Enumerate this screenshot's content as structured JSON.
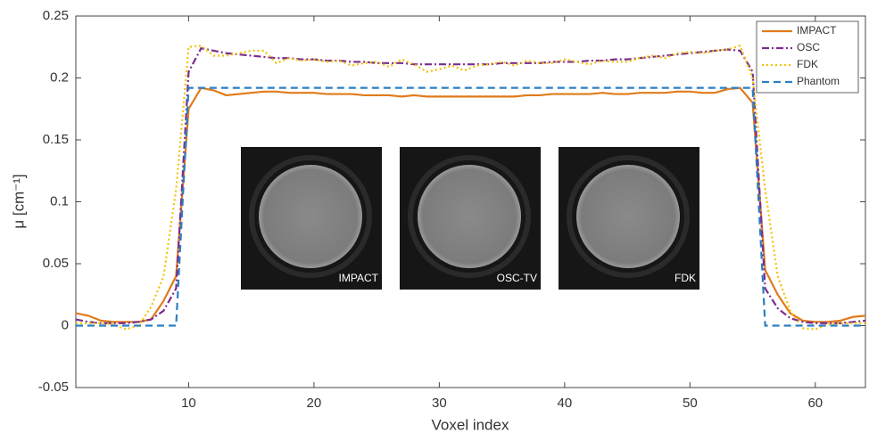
{
  "chart_data": {
    "type": "line",
    "xlabel": "Voxel index",
    "ylabel": "μ [cm⁻¹]",
    "x": [
      1,
      2,
      3,
      4,
      5,
      6,
      7,
      8,
      9,
      10,
      11,
      12,
      13,
      14,
      15,
      16,
      17,
      18,
      19,
      20,
      21,
      22,
      23,
      24,
      25,
      26,
      27,
      28,
      29,
      30,
      31,
      32,
      33,
      34,
      35,
      36,
      37,
      38,
      39,
      40,
      41,
      42,
      43,
      44,
      45,
      46,
      47,
      48,
      49,
      50,
      51,
      52,
      53,
      54,
      55,
      56,
      57,
      58,
      59,
      60,
      61,
      62,
      63,
      64
    ],
    "xlim": [
      1,
      64
    ],
    "xticks": [
      10,
      20,
      30,
      40,
      50,
      60
    ],
    "ylim": [
      -0.05,
      0.25
    ],
    "yticks": [
      -0.05,
      0,
      0.05,
      0.1,
      0.15,
      0.2,
      0.25
    ],
    "legend": "upper right",
    "series": [
      {
        "name": "IMPACT",
        "color": "#e07b1a",
        "linestyle": "solid",
        "values": [
          0.01,
          0.008,
          0.004,
          0.003,
          0.003,
          0.003,
          0.005,
          0.02,
          0.04,
          0.175,
          0.192,
          0.19,
          0.186,
          0.187,
          0.188,
          0.189,
          0.189,
          0.188,
          0.188,
          0.188,
          0.187,
          0.187,
          0.187,
          0.186,
          0.186,
          0.186,
          0.185,
          0.186,
          0.185,
          0.185,
          0.185,
          0.185,
          0.185,
          0.185,
          0.185,
          0.185,
          0.186,
          0.186,
          0.187,
          0.187,
          0.187,
          0.187,
          0.188,
          0.187,
          0.187,
          0.188,
          0.188,
          0.188,
          0.189,
          0.189,
          0.188,
          0.188,
          0.191,
          0.192,
          0.18,
          0.045,
          0.025,
          0.01,
          0.004,
          0.003,
          0.003,
          0.004,
          0.007,
          0.008
        ]
      },
      {
        "name": "OSC",
        "color": "#7b2d8e",
        "linestyle": "dashdot",
        "values": [
          0.005,
          0.003,
          0.002,
          0.002,
          0.002,
          0.003,
          0.005,
          0.012,
          0.03,
          0.205,
          0.224,
          0.222,
          0.22,
          0.219,
          0.218,
          0.217,
          0.216,
          0.216,
          0.215,
          0.215,
          0.214,
          0.214,
          0.213,
          0.213,
          0.212,
          0.212,
          0.212,
          0.211,
          0.211,
          0.211,
          0.211,
          0.211,
          0.211,
          0.211,
          0.212,
          0.212,
          0.212,
          0.212,
          0.213,
          0.213,
          0.213,
          0.214,
          0.214,
          0.215,
          0.215,
          0.216,
          0.217,
          0.218,
          0.219,
          0.22,
          0.221,
          0.222,
          0.223,
          0.222,
          0.205,
          0.03,
          0.014,
          0.006,
          0.003,
          0.002,
          0.002,
          0.002,
          0.003,
          0.004
        ]
      },
      {
        "name": "FDK",
        "color": "#f2c200",
        "linestyle": "dotted",
        "values": [
          0.002,
          0.002,
          0.002,
          0.001,
          -0.003,
          0,
          0.015,
          0.04,
          0.11,
          0.225,
          0.226,
          0.218,
          0.218,
          0.22,
          0.222,
          0.222,
          0.212,
          0.216,
          0.214,
          0.215,
          0.213,
          0.214,
          0.21,
          0.212,
          0.213,
          0.209,
          0.215,
          0.211,
          0.205,
          0.207,
          0.21,
          0.206,
          0.21,
          0.211,
          0.213,
          0.21,
          0.214,
          0.212,
          0.212,
          0.215,
          0.213,
          0.211,
          0.214,
          0.213,
          0.213,
          0.216,
          0.218,
          0.216,
          0.22,
          0.221,
          0.22,
          0.222,
          0.223,
          0.226,
          0.2,
          0.11,
          0.04,
          0.012,
          -0.002,
          -0.003,
          0.001,
          0.002,
          0.002,
          0.002
        ]
      },
      {
        "name": "Phantom",
        "color": "#2b7fc3",
        "linestyle": "dashed",
        "values": [
          0,
          0,
          0,
          0,
          0,
          0,
          0,
          0,
          0,
          0.192,
          0.192,
          0.192,
          0.192,
          0.192,
          0.192,
          0.192,
          0.192,
          0.192,
          0.192,
          0.192,
          0.192,
          0.192,
          0.192,
          0.192,
          0.192,
          0.192,
          0.192,
          0.192,
          0.192,
          0.192,
          0.192,
          0.192,
          0.192,
          0.192,
          0.192,
          0.192,
          0.192,
          0.192,
          0.192,
          0.192,
          0.192,
          0.192,
          0.192,
          0.192,
          0.192,
          0.192,
          0.192,
          0.192,
          0.192,
          0.192,
          0.192,
          0.192,
          0.192,
          0.192,
          0.192,
          0,
          0,
          0,
          0,
          0,
          0,
          0,
          0,
          0
        ]
      }
    ],
    "insets": [
      {
        "label": "IMPACT"
      },
      {
        "label": "OSC-TV"
      },
      {
        "label": "FDK"
      }
    ]
  }
}
